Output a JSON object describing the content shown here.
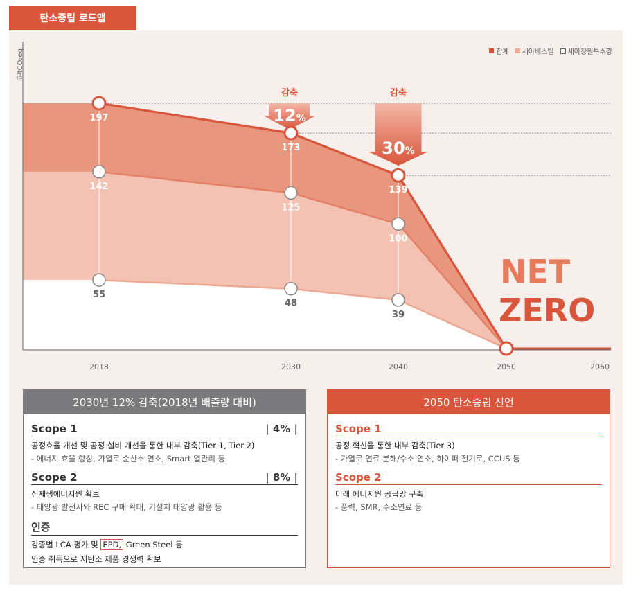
{
  "page": {
    "title": "탄소중립 로드맵"
  },
  "legend": [
    {
      "label": "합계",
      "color": "#d9553b"
    },
    {
      "label": "세아베스틸",
      "color": "#eda894"
    },
    {
      "label": "세아창원특수강",
      "color": "#ffffff"
    }
  ],
  "unit": "만tCO₂eq",
  "reductions": [
    {
      "label": "감축",
      "value": "12",
      "unit": "%"
    },
    {
      "label": "감축",
      "value": "30",
      "unit": "%"
    }
  ],
  "net_zero": [
    "NET",
    "ZERO"
  ],
  "chart_data": {
    "type": "area",
    "x": [
      2018,
      2030,
      2040,
      2050
    ],
    "x_ticks": [
      "2018",
      "2030",
      "2040",
      "2050",
      "2060"
    ],
    "series": [
      {
        "name": "합계",
        "values": [
          197,
          173,
          139,
          0
        ]
      },
      {
        "name": "세아베스틸",
        "values": [
          142,
          125,
          100,
          0
        ]
      },
      {
        "name": "세아창원특수강",
        "values": [
          55,
          48,
          39,
          0
        ]
      }
    ],
    "xlim": [
      2018,
      2060
    ],
    "ylim": [
      0,
      197
    ],
    "ylabel": "만tCO₂eq"
  },
  "left_box": {
    "header": "2030년 12% 감축(2018년 배출량 대비)",
    "scope1": {
      "title": "Scope 1",
      "pct": "| 4% |",
      "line1": "공정효율 개선 및 공정 설비 개선을 통한 내부 감축(Tier 1, Tier 2)",
      "line2": "- 에너지 효율 향상, 가열로 순산소 연소, Smart 열관리 등"
    },
    "scope2": {
      "title": "Scope 2",
      "pct": "| 8% |",
      "line1": "신재생에너지원 확보",
      "line2": "- 태양광 발전사와 REC 구매 확대, 기설치 태양광 활용 등"
    },
    "cert": {
      "title": "인증",
      "line1_a": "강종별 LCA 평가 및 ",
      "line1_epd": "EPD,",
      "line1_b": " Green Steel 등",
      "line2": "인증 취득으로 저탄소 제품 경쟁력 확보"
    }
  },
  "right_box": {
    "header": "2050 탄소중립 선언",
    "scope1": {
      "title": "Scope 1",
      "line1": "공정 혁신을 통한 내부 감축(Tier 3)",
      "line2": "- 가열로 연료 분해/수소 연소, 하이퍼 전기로, CCUS 등"
    },
    "scope2": {
      "title": "Scope 2",
      "line1": "미래 에너지원 공급망 구축",
      "line2": "- 풍력, SMR, 수소연료 등"
    }
  }
}
